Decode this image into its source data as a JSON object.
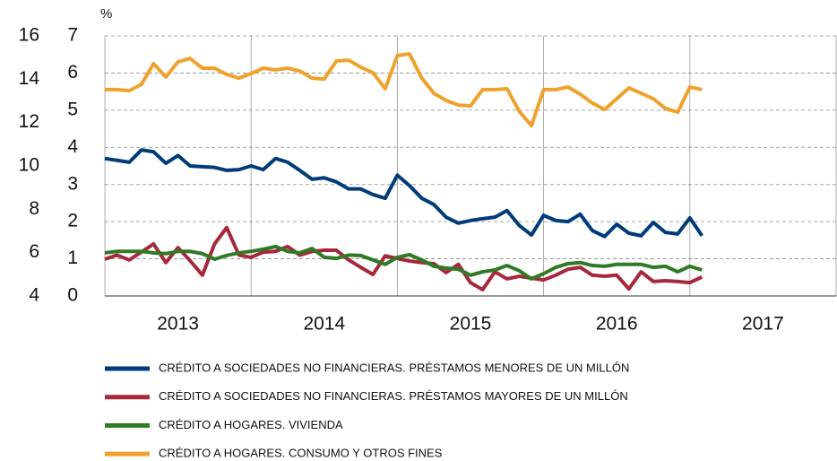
{
  "chart_data": {
    "type": "line",
    "ylabel": "%",
    "x": [
      2013,
      2013.083,
      2013.167,
      2013.25,
      2013.333,
      2013.417,
      2013.5,
      2013.583,
      2013.667,
      2013.75,
      2013.833,
      2013.917,
      2014,
      2014.083,
      2014.167,
      2014.25,
      2014.333,
      2014.417,
      2014.5,
      2014.583,
      2014.667,
      2014.75,
      2014.833,
      2014.917,
      2015,
      2015.083,
      2015.167,
      2015.25,
      2015.333,
      2015.417,
      2015.5,
      2015.583,
      2015.667,
      2015.75,
      2015.833,
      2015.917,
      2016,
      2016.083,
      2016.167,
      2016.25,
      2016.333,
      2016.417,
      2016.5,
      2016.583,
      2016.667,
      2016.75,
      2016.833,
      2016.917,
      2017,
      2017.083
    ],
    "xlim": [
      2013,
      2018
    ],
    "xticks": [
      {
        "value": 2013.5,
        "label": "2013"
      },
      {
        "value": 2014.5,
        "label": "2014"
      },
      {
        "value": 2015.5,
        "label": "2015"
      },
      {
        "value": 2016.5,
        "label": "2016"
      },
      {
        "value": 2017.5,
        "label": "2017"
      }
    ],
    "xgrid": [
      2013,
      2014,
      2015,
      2016,
      2017,
      2018
    ],
    "ylim": [
      0,
      7
    ],
    "yticks": [
      0,
      1,
      2,
      3,
      4,
      5,
      6,
      7
    ],
    "y2lim": [
      4,
      16
    ],
    "y2ticks": [
      4,
      6,
      8,
      10,
      12,
      14,
      16
    ],
    "grid": true,
    "series": [
      {
        "name": "CRÉDITO A SOCIEDADES NO FINANCIERAS. PRÉSTAMOS MENORES DE UN MILLÓN",
        "color": "#003b7a",
        "values": [
          3.7,
          3.65,
          3.6,
          3.93,
          3.88,
          3.57,
          3.78,
          3.5,
          3.48,
          3.46,
          3.38,
          3.4,
          3.5,
          3.4,
          3.7,
          3.6,
          3.38,
          3.14,
          3.18,
          3.07,
          2.88,
          2.88,
          2.73,
          2.63,
          3.25,
          2.97,
          2.63,
          2.46,
          2.12,
          1.96,
          2.03,
          2.08,
          2.12,
          2.3,
          1.9,
          1.64,
          2.17,
          2.03,
          2.0,
          2.2,
          1.76,
          1.6,
          1.93,
          1.69,
          1.62,
          1.98,
          1.71,
          1.67,
          2.1,
          1.62
        ]
      },
      {
        "name": "CRÉDITO A SOCIEDADES NO FINANCIERAS. PRÉSTAMOS MAYORES DE UN MILLÓN",
        "color": "#a6283a",
        "values": [
          0.99,
          1.1,
          0.97,
          1.18,
          1.4,
          0.9,
          1.3,
          0.95,
          0.56,
          1.4,
          1.84,
          1.1,
          1.04,
          1.18,
          1.2,
          1.33,
          1.1,
          1.2,
          1.23,
          1.23,
          0.97,
          0.77,
          0.58,
          1.08,
          1.01,
          0.94,
          0.9,
          0.87,
          0.63,
          0.85,
          0.36,
          0.17,
          0.65,
          0.46,
          0.53,
          0.48,
          0.43,
          0.56,
          0.72,
          0.77,
          0.56,
          0.53,
          0.56,
          0.19,
          0.65,
          0.39,
          0.41,
          0.39,
          0.36,
          0.51
        ]
      },
      {
        "name": "CRÉDITO A HOGARES. VIVIENDA",
        "color": "#2e7a25",
        "values": [
          1.16,
          1.2,
          1.2,
          1.2,
          1.16,
          1.14,
          1.2,
          1.2,
          1.14,
          0.99,
          1.09,
          1.16,
          1.2,
          1.26,
          1.33,
          1.2,
          1.16,
          1.28,
          1.04,
          1.01,
          1.1,
          1.09,
          0.97,
          0.85,
          1.04,
          1.11,
          0.97,
          0.8,
          0.75,
          0.72,
          0.56,
          0.65,
          0.7,
          0.82,
          0.68,
          0.46,
          0.6,
          0.77,
          0.87,
          0.9,
          0.82,
          0.8,
          0.85,
          0.85,
          0.85,
          0.77,
          0.8,
          0.65,
          0.8,
          0.7
        ]
      },
      {
        "name": "CRÉDITO A HOGARES. CONSUMO Y OTROS FINES",
        "color": "#f0a12b",
        "axis": "y2",
        "values": [
          13.52,
          13.52,
          13.47,
          13.76,
          14.72,
          14.1,
          14.8,
          14.96,
          14.51,
          14.51,
          14.22,
          14.05,
          14.26,
          14.51,
          14.43,
          14.51,
          14.38,
          14.05,
          14.01,
          14.84,
          14.88,
          14.55,
          14.3,
          13.56,
          15.09,
          15.17,
          14.05,
          13.35,
          13.02,
          12.81,
          12.77,
          13.52,
          13.52,
          13.56,
          12.52,
          11.86,
          13.52,
          13.52,
          13.64,
          13.31,
          12.9,
          12.6,
          13.1,
          13.6,
          13.35,
          13.1,
          12.65,
          12.48,
          13.64,
          13.52
        ]
      }
    ]
  }
}
